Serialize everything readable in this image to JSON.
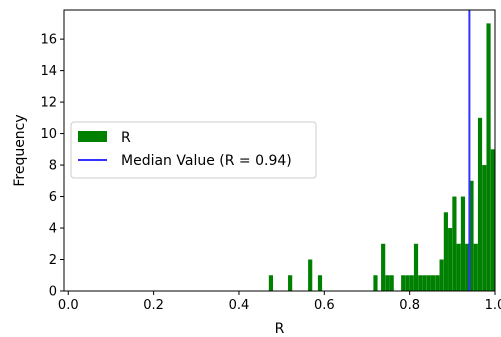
{
  "chart_data": {
    "type": "bar",
    "title": "",
    "xlabel": "R",
    "ylabel": "Frequency",
    "xlim": [
      -0.01,
      1.0
    ],
    "ylim": [
      0,
      17.85
    ],
    "grid": false,
    "legend_position": "center-left",
    "x_ticks": [
      "0.0",
      "0.2",
      "0.4",
      "0.6",
      "0.8",
      "1.0"
    ],
    "x_tick_values": [
      0.0,
      0.2,
      0.4,
      0.6,
      0.8,
      1.0
    ],
    "y_ticks": [
      "0",
      "2",
      "4",
      "6",
      "8",
      "10",
      "12",
      "14",
      "16"
    ],
    "y_tick_values": [
      0,
      2,
      4,
      6,
      8,
      10,
      12,
      14,
      16
    ],
    "bin_width": 0.0098,
    "bins": [
      {
        "x": 0.47,
        "count": 1
      },
      {
        "x": 0.515,
        "count": 1
      },
      {
        "x": 0.562,
        "count": 2
      },
      {
        "x": 0.585,
        "count": 1
      },
      {
        "x": 0.715,
        "count": 1
      },
      {
        "x": 0.733,
        "count": 3
      },
      {
        "x": 0.743,
        "count": 1
      },
      {
        "x": 0.753,
        "count": 1
      },
      {
        "x": 0.78,
        "count": 1
      },
      {
        "x": 0.79,
        "count": 1
      },
      {
        "x": 0.8,
        "count": 1
      },
      {
        "x": 0.81,
        "count": 3
      },
      {
        "x": 0.82,
        "count": 1
      },
      {
        "x": 0.83,
        "count": 1
      },
      {
        "x": 0.84,
        "count": 1
      },
      {
        "x": 0.85,
        "count": 1
      },
      {
        "x": 0.86,
        "count": 1
      },
      {
        "x": 0.87,
        "count": 2
      },
      {
        "x": 0.88,
        "count": 5
      },
      {
        "x": 0.89,
        "count": 4
      },
      {
        "x": 0.9,
        "count": 6
      },
      {
        "x": 0.91,
        "count": 3
      },
      {
        "x": 0.92,
        "count": 6
      },
      {
        "x": 0.93,
        "count": 3
      },
      {
        "x": 0.94,
        "count": 7
      },
      {
        "x": 0.95,
        "count": 3
      },
      {
        "x": 0.96,
        "count": 11
      },
      {
        "x": 0.97,
        "count": 8
      },
      {
        "x": 0.98,
        "count": 17
      },
      {
        "x": 0.99,
        "count": 9
      }
    ],
    "median": 0.94,
    "series": [
      {
        "name": "R",
        "color": "#008000",
        "kind": "histogram"
      },
      {
        "name": "Median Value (R = 0.94)",
        "color": "#3333ff",
        "kind": "vertical-line"
      }
    ]
  }
}
